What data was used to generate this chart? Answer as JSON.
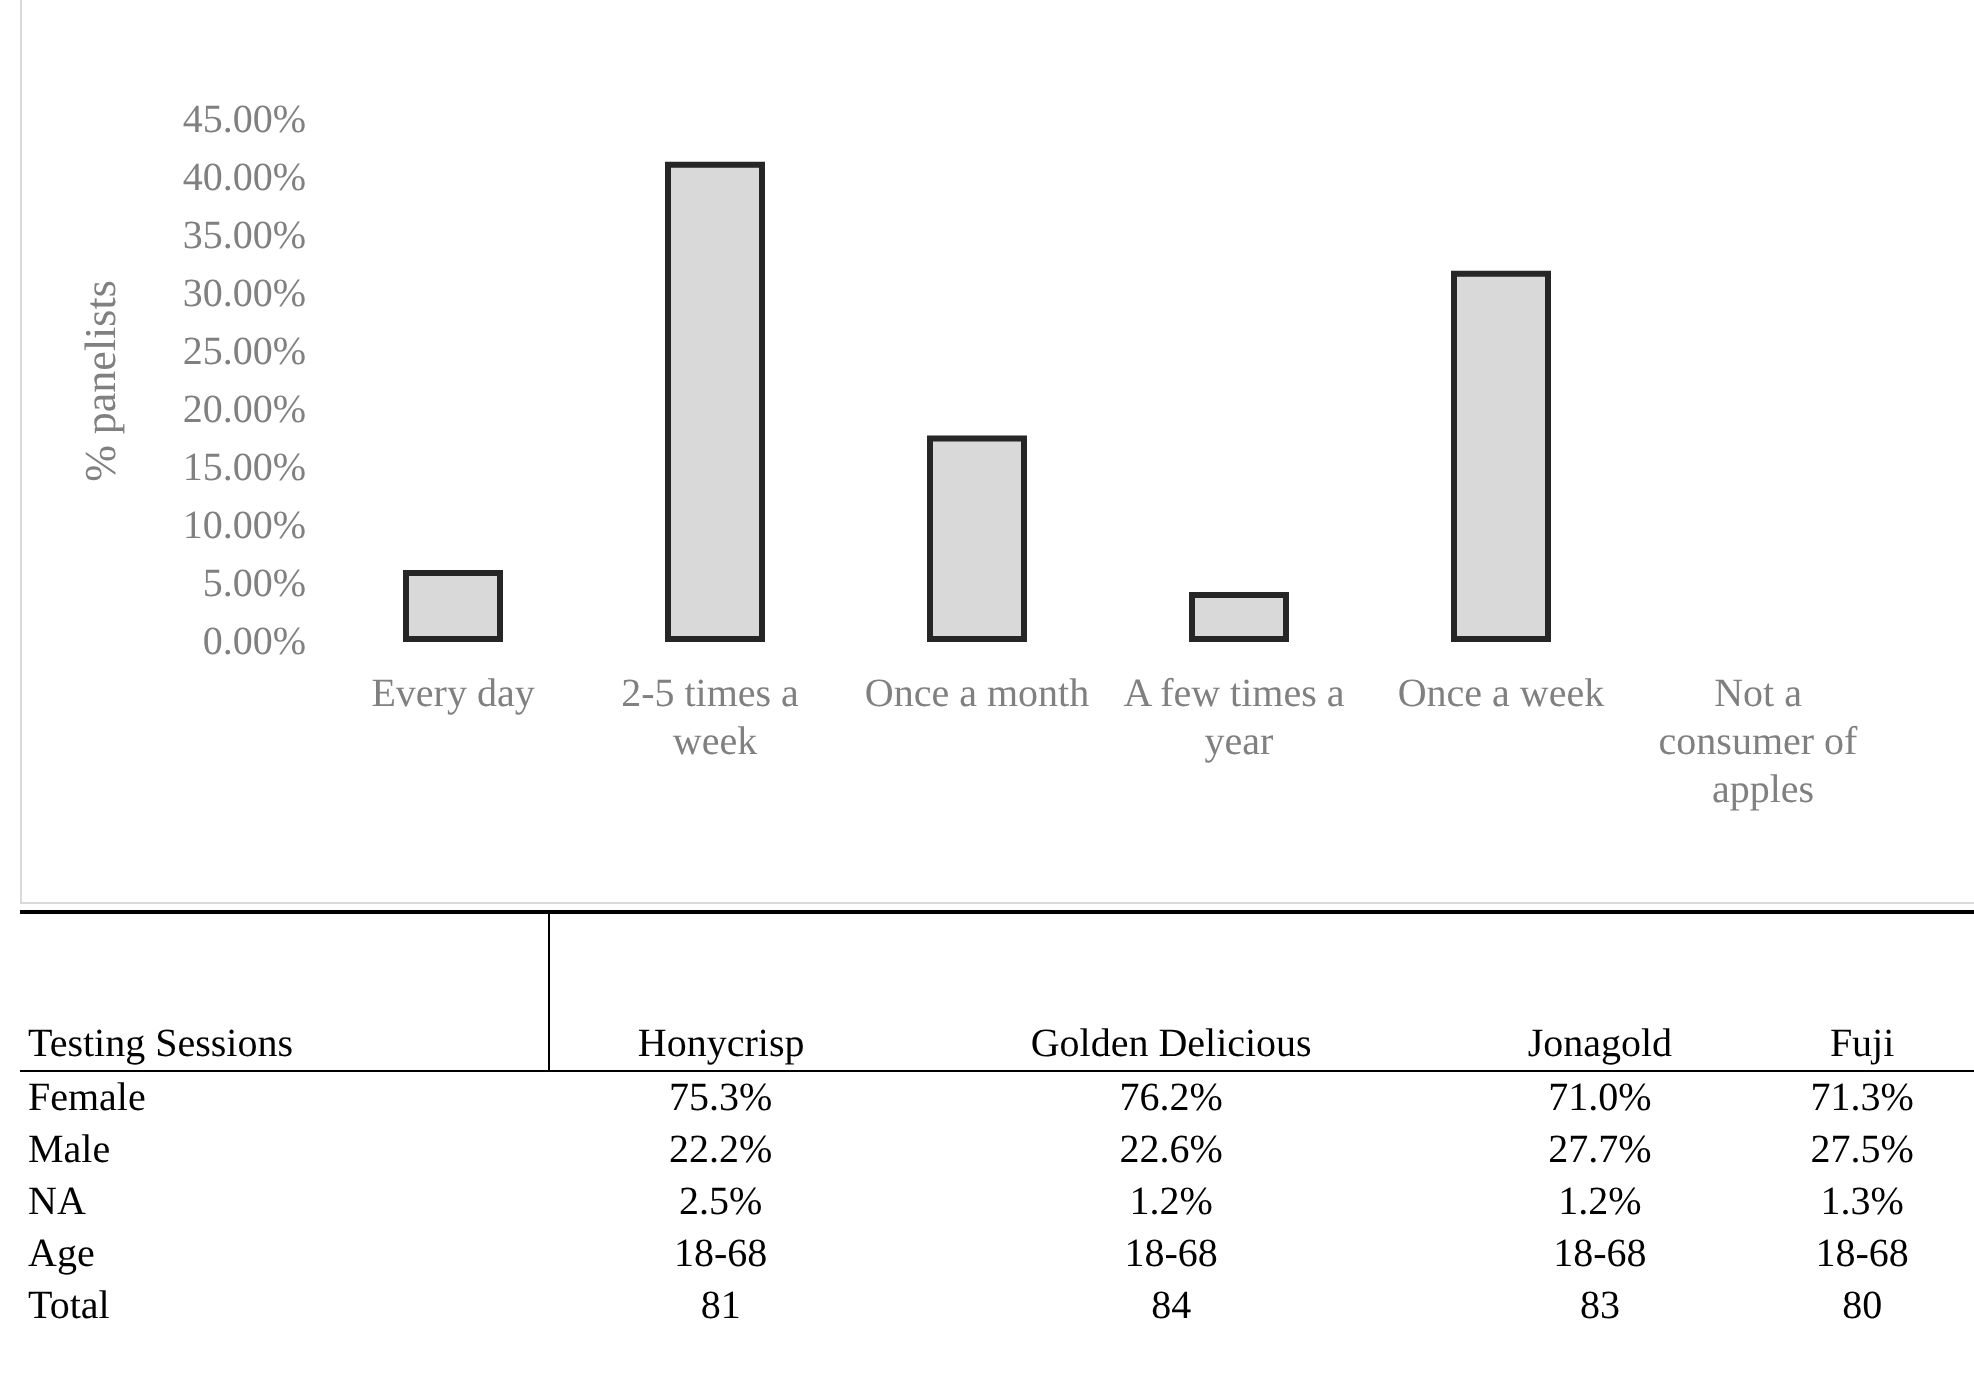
{
  "chart_data": [
    {
      "type": "bar",
      "ylabel": "% panelists",
      "categories": [
        "Every day",
        "2-5 times a week",
        "Once a month",
        "A few times a year",
        "Once a week",
        "Not a consumer of apples"
      ],
      "values": [
        6.2,
        41.4,
        17.8,
        4.3,
        32.0,
        0
      ],
      "color": "#d9d9d9",
      "ylim": [
        0,
        45
      ],
      "yticks": [
        {
          "value": 0,
          "label": "0.00%"
        },
        {
          "value": 5,
          "label": "5.00%"
        },
        {
          "value": 10,
          "label": "10.00%"
        },
        {
          "value": 15,
          "label": "15.00%"
        },
        {
          "value": 20,
          "label": "20.00%"
        },
        {
          "value": 25,
          "label": "25.00%"
        },
        {
          "value": 30,
          "label": "30.00%"
        },
        {
          "value": 35,
          "label": "35.00%"
        },
        {
          "value": 40,
          "label": "40.00%"
        },
        {
          "value": 45,
          "label": "45.00%"
        }
      ],
      "grid": false
    },
    {
      "type": "other",
      "annotations": [
        "Testing Sessions",
        "Honycrisp",
        "Golden Delicious",
        "Jonagold",
        "Fuji",
        "Female",
        "75.3%",
        "76.2%",
        "71.0%",
        "71.3%",
        "Male",
        "22.2%",
        "22.6%",
        "27.7%",
        "27.5%",
        "NA",
        "2.5%",
        "1.2%",
        "1.2%",
        "1.3%",
        "Age",
        "18-68",
        "18-68",
        "18-68",
        "18-68",
        "Total",
        "81",
        "84",
        "83",
        "80"
      ]
    }
  ]
}
